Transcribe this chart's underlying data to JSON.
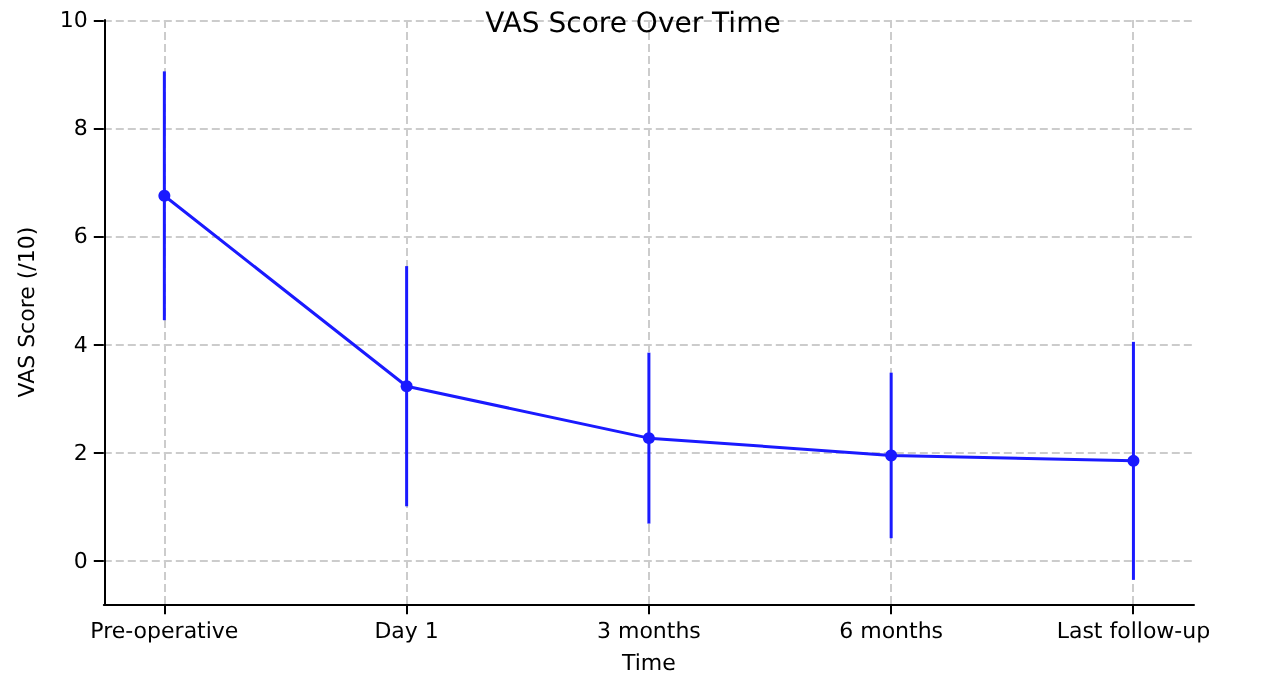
{
  "chart_data": {
    "type": "line",
    "title": "VAS Score Over Time",
    "xlabel": "Time",
    "ylabel": "VAS Score (/10)",
    "categories": [
      "Pre-operative",
      "Day 1",
      "3 months",
      "6 months",
      "Last follow-up"
    ],
    "series": [
      {
        "color": "#1a1aff",
        "values": [
          6.75,
          3.23,
          2.27,
          1.95,
          1.85
        ],
        "errors": [
          2.3,
          2.22,
          1.58,
          1.53,
          2.2
        ]
      }
    ],
    "ylim": [
      -0.8,
      10
    ],
    "yticks": [
      0,
      2,
      4,
      6,
      8,
      10
    ],
    "grid": true,
    "marker": "circle",
    "line_style": "solid"
  }
}
